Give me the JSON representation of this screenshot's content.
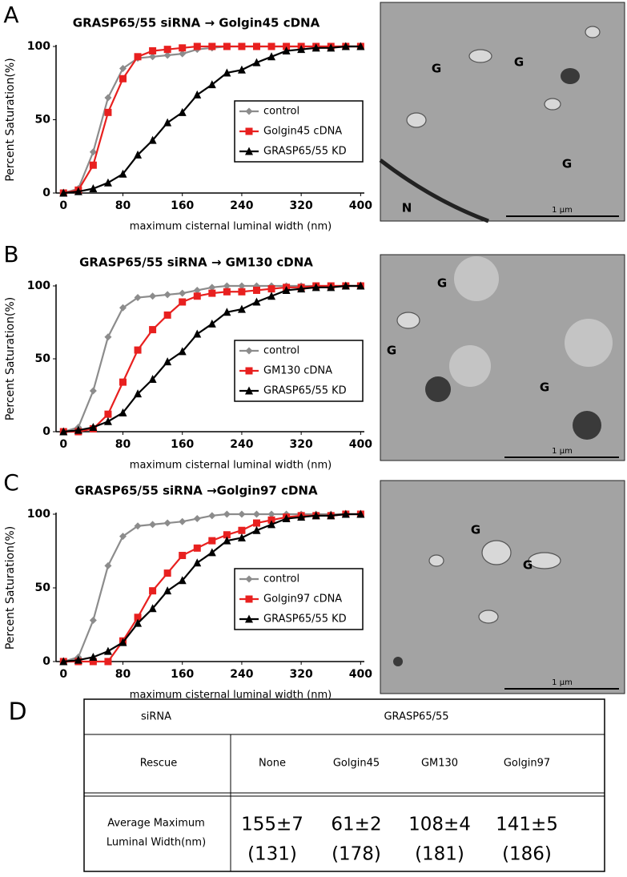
{
  "chart_data": [
    {
      "type": "line",
      "panel": "A",
      "title": "GRASP65/55 siRNA  →  Golgin45 cDNA",
      "xlabel": "maximum cisternal luminal width (nm)",
      "ylabel": "Percent  Saturation(%)",
      "x": [
        0,
        20,
        40,
        60,
        80,
        100,
        120,
        140,
        160,
        180,
        200,
        220,
        240,
        260,
        280,
        300,
        320,
        340,
        360,
        380,
        400
      ],
      "series": [
        {
          "name": "control",
          "color": "#8c8c8c",
          "marker": "diamond",
          "values": [
            0,
            3,
            28,
            65,
            85,
            92,
            93,
            94,
            95,
            98,
            99,
            100,
            100,
            100,
            100,
            100,
            100,
            100,
            100,
            100,
            100
          ]
        },
        {
          "name": "Golgin45 cDNA",
          "color": "#e8201f",
          "marker": "square",
          "values": [
            0,
            2,
            19,
            55,
            78,
            93,
            97,
            98,
            99,
            100,
            100,
            100,
            100,
            100,
            100,
            100,
            100,
            100,
            100,
            100,
            100
          ]
        },
        {
          "name": "GRASP65/55 KD",
          "color": "#000000",
          "marker": "triangle",
          "values": [
            0,
            1,
            3,
            7,
            13,
            26,
            36,
            48,
            55,
            67,
            74,
            82,
            84,
            89,
            93,
            97,
            98,
            99,
            99,
            100,
            100
          ]
        }
      ],
      "xlim": [
        -10,
        405
      ],
      "ylim": [
        0,
        100
      ],
      "xticks": [
        0,
        80,
        160,
        240,
        320,
        400
      ],
      "yticks": [
        0,
        50,
        100
      ],
      "legend": "center right"
    },
    {
      "type": "line",
      "panel": "B",
      "title": "GRASP65/55 siRNA  →  GM130 cDNA",
      "xlabel": "maximum cisternal luminal width (nm)",
      "ylabel": "Percent  Saturation(%)",
      "x": [
        0,
        20,
        40,
        60,
        80,
        100,
        120,
        140,
        160,
        180,
        200,
        220,
        240,
        260,
        280,
        300,
        320,
        340,
        360,
        380,
        400
      ],
      "series": [
        {
          "name": "control",
          "color": "#8c8c8c",
          "marker": "diamond",
          "values": [
            0,
            3,
            28,
            65,
            85,
            92,
            93,
            94,
            95,
            97,
            99,
            100,
            100,
            100,
            100,
            100,
            100,
            100,
            100,
            100,
            100
          ]
        },
        {
          "name": "GM130 cDNA",
          "color": "#e8201f",
          "marker": "square",
          "values": [
            0,
            0,
            2,
            12,
            34,
            56,
            70,
            80,
            89,
            93,
            95,
            96,
            96,
            97,
            98,
            99,
            99,
            100,
            100,
            100,
            100
          ]
        },
        {
          "name": "GRASP65/55 KD",
          "color": "#000000",
          "marker": "triangle",
          "values": [
            0,
            1,
            3,
            7,
            13,
            26,
            36,
            48,
            55,
            67,
            74,
            82,
            84,
            89,
            93,
            97,
            98,
            99,
            99,
            100,
            100
          ]
        }
      ],
      "xlim": [
        -10,
        405
      ],
      "ylim": [
        0,
        100
      ],
      "xticks": [
        0,
        80,
        160,
        240,
        320,
        400
      ],
      "yticks": [
        0,
        50,
        100
      ],
      "legend": "center right"
    },
    {
      "type": "line",
      "panel": "C",
      "title": "GRASP65/55 siRNA  →Golgin97 cDNA",
      "xlabel": "maximum cisternal luminal width (nm)",
      "ylabel": "Percent  Saturation(%)",
      "x": [
        0,
        20,
        40,
        60,
        80,
        100,
        120,
        140,
        160,
        180,
        200,
        220,
        240,
        260,
        280,
        300,
        320,
        340,
        360,
        380,
        400
      ],
      "series": [
        {
          "name": "control",
          "color": "#8c8c8c",
          "marker": "diamond",
          "values": [
            0,
            3,
            28,
            65,
            85,
            92,
            93,
            94,
            95,
            97,
            99,
            100,
            100,
            100,
            100,
            100,
            100,
            100,
            100,
            100,
            100
          ]
        },
        {
          "name": "Golgin97 cDNA",
          "color": "#e8201f",
          "marker": "square",
          "values": [
            0,
            0,
            0,
            0,
            14,
            30,
            48,
            60,
            72,
            77,
            82,
            86,
            89,
            94,
            96,
            98,
            99,
            99,
            99,
            100,
            100
          ]
        },
        {
          "name": "GRASP65/55 KD",
          "color": "#000000",
          "marker": "triangle",
          "values": [
            0,
            1,
            3,
            7,
            13,
            26,
            36,
            48,
            55,
            67,
            74,
            82,
            84,
            89,
            93,
            97,
            98,
            99,
            99,
            100,
            100
          ]
        }
      ],
      "xlim": [
        -10,
        405
      ],
      "ylim": [
        0,
        100
      ],
      "xticks": [
        0,
        80,
        160,
        240,
        320,
        400
      ],
      "yticks": [
        0,
        50,
        100
      ],
      "legend": "center right"
    }
  ],
  "images": [
    {
      "labels": [
        "G",
        "G",
        "G",
        "N"
      ],
      "scale_bar": "1 µm"
    },
    {
      "labels": [
        "G",
        "G",
        "G"
      ],
      "scale_bar": "1 µm"
    },
    {
      "labels": [
        "G",
        "G"
      ],
      "scale_bar": "1 µm"
    }
  ],
  "table": {
    "label": "D",
    "rows": [
      [
        "siRNA",
        "GRASP65/55"
      ],
      [
        "Rescue",
        "None",
        "Golgin45",
        "GM130",
        "Golgin97"
      ],
      [
        [
          "Average Maximum",
          "Luminal Width(nm)"
        ],
        [
          "155±7",
          "(131)"
        ],
        [
          "61±2",
          "(178)"
        ],
        [
          "108±4",
          "(181)"
        ],
        [
          "141±5",
          "(186)"
        ]
      ]
    ]
  }
}
